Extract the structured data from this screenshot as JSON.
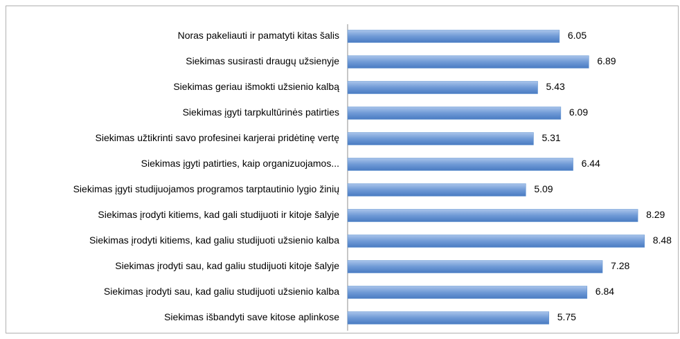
{
  "chart_data": {
    "type": "barh",
    "categories": [
      "Noras pakeliauti ir pamatyti kitas šalis",
      "Siekimas susirasti draugų užsienyje",
      "Siekimas geriau išmokti užsienio kalbą",
      "Siekimas įgyti tarpkultūrinės patirties",
      "Siekimas užtikrinti savo profesinei karjerai pridėtinę vertę",
      "Siekimas įgyti patirties, kaip organizuojamos...",
      "Siekimas įgyti studijuojamos programos tarptautinio lygio žinių",
      "Siekimas įrodyti kitiems, kad gali studijuoti ir kitoje šalyje",
      "Siekimas įrodyti kitiems, kad galiu studijuoti užsienio kalba",
      "Siekimas įrodyti sau, kad galiu studijuoti kitoje šalyje",
      "Siekimas įrodyti sau, kad galiu studijuoti užsienio kalba",
      "Siekimas išbandyti save kitose aplinkose"
    ],
    "values": [
      6.05,
      6.89,
      5.43,
      6.09,
      5.31,
      6.44,
      5.09,
      8.29,
      8.48,
      7.28,
      6.84,
      5.75
    ],
    "color": "#5b8fd0",
    "xlim": [
      0,
      9
    ]
  }
}
